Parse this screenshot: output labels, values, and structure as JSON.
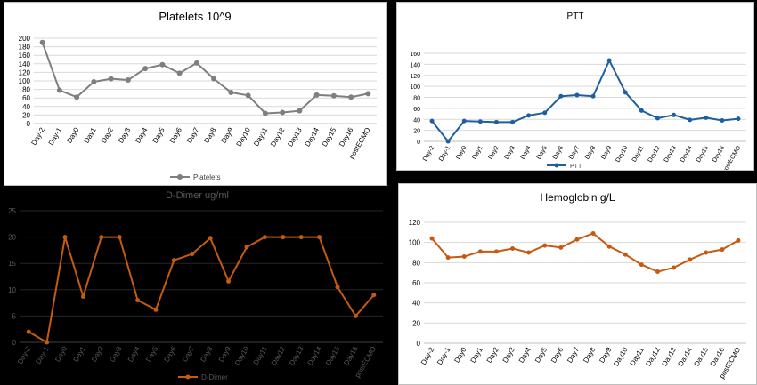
{
  "charts": [
    {
      "id": "platelets",
      "type": "line",
      "title": "Platelets 10^9",
      "legend": "Platelets",
      "color": "#7f7f7f",
      "ylim": [
        0,
        200
      ],
      "ystep": 20,
      "categories": [
        "Day-2",
        "Day-1",
        "Day0",
        "Day1",
        "Day2",
        "Day3",
        "Day4",
        "Day5",
        "Day6",
        "Day7",
        "Day8",
        "Day9",
        "Day10",
        "Day11",
        "Day12",
        "Day13",
        "Day14",
        "Day15",
        "Day16",
        "postECMO"
      ],
      "values": [
        190,
        78,
        62,
        98,
        105,
        102,
        129,
        138,
        118,
        142,
        105,
        73,
        66,
        24,
        26,
        30,
        67,
        65,
        62,
        70
      ]
    },
    {
      "id": "ptt",
      "type": "line",
      "title": "PTT",
      "legend": "PTT",
      "color": "#1f5f9e",
      "ylim": [
        0,
        160
      ],
      "ystep": 20,
      "categories": [
        "Day-2",
        "Day-1",
        "Day0",
        "Day1",
        "Day2",
        "Day3",
        "Day4",
        "Day5",
        "Day6",
        "Day7",
        "Day8",
        "Day9",
        "Day10",
        "Day11",
        "Day12",
        "Day13",
        "Day14",
        "Day15",
        "Day16",
        "postECMO"
      ],
      "values": [
        37,
        0,
        37,
        36,
        35,
        35,
        47,
        52,
        82,
        84,
        82,
        147,
        89,
        56,
        42,
        48,
        39,
        43,
        38,
        41
      ]
    },
    {
      "id": "ddimer",
      "type": "line",
      "title": "D-Dimer ug/ml",
      "legend": "D-Dimer",
      "color": "#c55a11",
      "ylim": [
        0,
        25
      ],
      "ystep": 5,
      "categories": [
        "Day-2",
        "Day-1",
        "Day0",
        "Day1",
        "Day2",
        "Day3",
        "Day4",
        "Day5",
        "Day6",
        "Day7",
        "Day8",
        "Day9",
        "Day10",
        "Day11",
        "Day12",
        "Day13",
        "Day14",
        "Day15",
        "Day16",
        "postECMO"
      ],
      "values": [
        2,
        0,
        20,
        8.7,
        20,
        20,
        8,
        6.2,
        15.6,
        16.8,
        19.8,
        11.6,
        18.1,
        20,
        20,
        20,
        20,
        10.5,
        5,
        9
      ]
    },
    {
      "id": "hgb",
      "type": "line",
      "title": "Hemoglobin g/L",
      "legend": "",
      "color": "#c55a11",
      "ylim": [
        0,
        120
      ],
      "ystep": 20,
      "categories": [
        "Day-2",
        "Day-1",
        "Day0",
        "Day1",
        "Day2",
        "Day3",
        "Day4",
        "Day5",
        "Day6",
        "Day7",
        "Day8",
        "Day9",
        "Day10",
        "Day11",
        "Day12",
        "Day13",
        "Day14",
        "Day15",
        "Day16",
        "postECMO"
      ],
      "values": [
        104,
        85,
        86,
        91,
        91,
        94,
        90,
        97,
        95,
        103,
        109,
        96,
        88,
        78,
        71,
        75,
        83,
        90,
        93,
        102
      ]
    }
  ]
}
